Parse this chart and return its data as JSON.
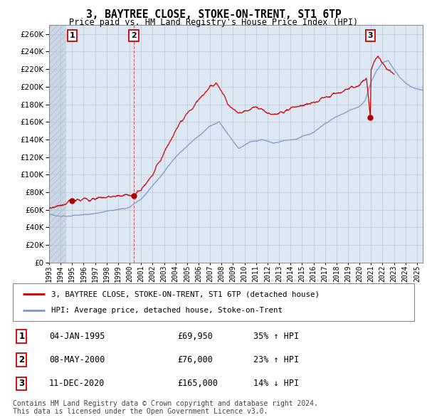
{
  "title": "3, BAYTREE CLOSE, STOKE-ON-TRENT, ST1 6TP",
  "subtitle": "Price paid vs. HM Land Registry's House Price Index (HPI)",
  "sale_annotations": [
    {
      "label": "1",
      "date": "04-JAN-1995",
      "price": "£69,950",
      "hpi": "35% ↑ HPI"
    },
    {
      "label": "2",
      "date": "08-MAY-2000",
      "price": "£76,000",
      "hpi": "23% ↑ HPI"
    },
    {
      "label": "3",
      "date": "11-DEC-2020",
      "price": "£165,000",
      "hpi": "14% ↓ HPI"
    }
  ],
  "sale_dates": [
    1995.01,
    2000.37,
    2020.95
  ],
  "sale_prices": [
    69950,
    76000,
    165000
  ],
  "legend_entries": [
    "3, BAYTREE CLOSE, STOKE-ON-TRENT, ST1 6TP (detached house)",
    "HPI: Average price, detached house, Stoke-on-Trent"
  ],
  "footer": "Contains HM Land Registry data © Crown copyright and database right 2024.\nThis data is licensed under the Open Government Licence v3.0.",
  "line_color_red": "#cc0000",
  "line_color_blue": "#7799cc",
  "dot_color": "#aa0000",
  "background_hatch_color": "#ccd8e8",
  "background_plain_color": "#dde8f4",
  "grid_color": "#b0bfcc",
  "ylim": [
    0,
    270000
  ],
  "yticks": [
    0,
    20000,
    40000,
    60000,
    80000,
    100000,
    120000,
    140000,
    160000,
    180000,
    200000,
    220000,
    240000,
    260000
  ],
  "xlim": [
    1993.0,
    2025.5
  ],
  "xticks": [
    1993,
    1994,
    1995,
    1996,
    1997,
    1998,
    1999,
    2000,
    2001,
    2002,
    2003,
    2004,
    2005,
    2006,
    2007,
    2008,
    2009,
    2010,
    2011,
    2012,
    2013,
    2014,
    2015,
    2016,
    2017,
    2018,
    2019,
    2020,
    2021,
    2022,
    2023,
    2024,
    2025
  ],
  "hatch_end_year": 1994.5
}
